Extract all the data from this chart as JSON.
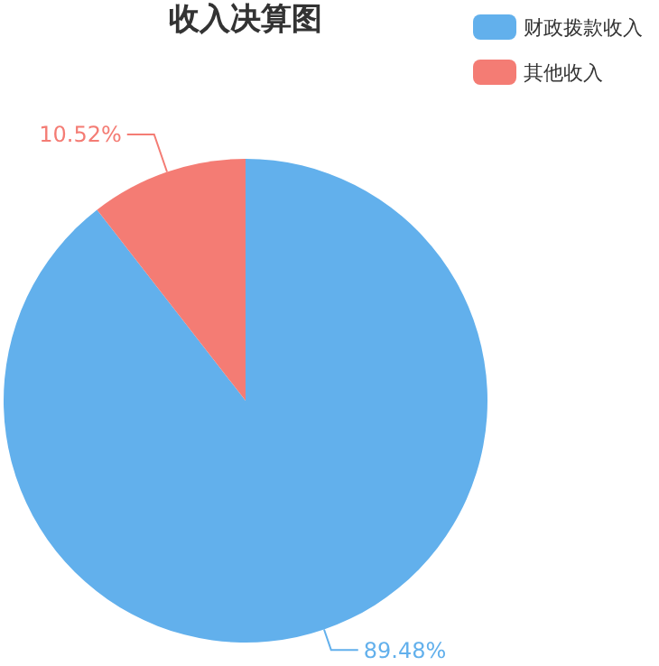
{
  "chart_data": {
    "type": "pie",
    "title": "收入决算图",
    "categories": [
      "财政拨款收入",
      "其他收入"
    ],
    "values": [
      89.48,
      10.52
    ],
    "colors": [
      "#62b0ec",
      "#f47c74"
    ],
    "value_labels": [
      "89.48%",
      "10.52%"
    ],
    "legend": "top right"
  }
}
